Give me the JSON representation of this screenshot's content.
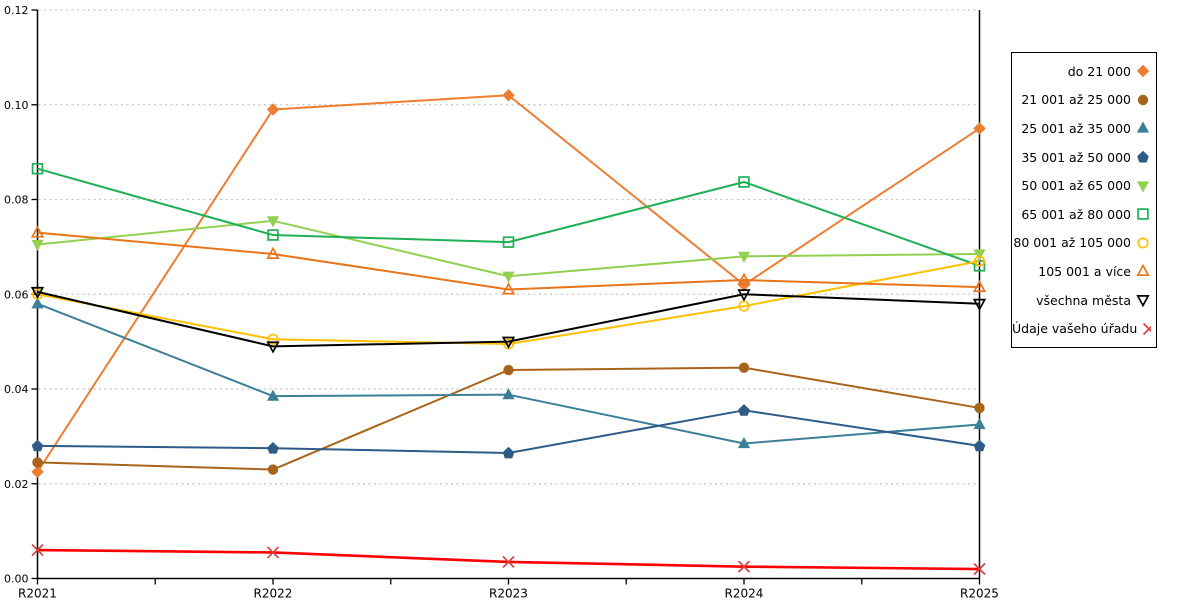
{
  "chart_data": {
    "type": "line",
    "title": "",
    "xlabel": "",
    "ylabel": "",
    "categories": [
      "R2021",
      "R2022",
      "R2023",
      "R2024",
      "R2025"
    ],
    "ylim": [
      0,
      0.12
    ],
    "ytick_step": 0.02,
    "ytick_labels": [
      "0.00",
      "0.02",
      "0.04",
      "0.06",
      "0.08",
      "0.10",
      "0.12"
    ],
    "grid": "horizontal-dotted",
    "legend_position": "right-outside",
    "series": [
      {
        "name": "do 21 000",
        "marker": "diamond",
        "filled": true,
        "color": "#ED7D31",
        "values": [
          0.0225,
          0.099,
          0.102,
          0.062,
          0.095
        ]
      },
      {
        "name": "21 001 až 25 000",
        "marker": "circle",
        "filled": true,
        "color": "#A9641C",
        "values": [
          0.0245,
          0.023,
          0.044,
          0.0445,
          0.036
        ]
      },
      {
        "name": "25 001 až 35 000",
        "marker": "triangle-up",
        "filled": true,
        "color": "#3C7F99",
        "values": [
          0.058,
          0.0385,
          0.0388,
          0.0285,
          0.0325
        ]
      },
      {
        "name": "35 001 až 50 000",
        "marker": "pentagon",
        "filled": true,
        "color": "#2E5B87",
        "values": [
          0.028,
          0.0275,
          0.0265,
          0.0355,
          0.028
        ]
      },
      {
        "name": "50 001 až 65 000",
        "marker": "triangle-down",
        "filled": true,
        "color": "#92D050",
        "values": [
          0.0705,
          0.0755,
          0.0638,
          0.068,
          0.0685
        ]
      },
      {
        "name": "65 001 až 80 000",
        "marker": "square",
        "filled": false,
        "color": "#1FAF54",
        "values": [
          0.0865,
          0.0725,
          0.071,
          0.0837,
          0.066
        ]
      },
      {
        "name": "80 001 až 105 000",
        "marker": "circle",
        "filled": false,
        "color": "#FFC000",
        "values": [
          0.06,
          0.0505,
          0.0495,
          0.0575,
          0.067
        ]
      },
      {
        "name": "105 001 a více",
        "marker": "triangle-up",
        "filled": false,
        "color": "#E8751A",
        "values": [
          0.073,
          0.0685,
          0.061,
          0.063,
          0.0615
        ]
      },
      {
        "name": "všechna města",
        "marker": "triangle-down",
        "filled": false,
        "color": "#000000",
        "values": [
          0.0605,
          0.049,
          0.05,
          0.06,
          0.058
        ]
      },
      {
        "name": "Údaje vašeho úřadu",
        "marker": "x",
        "filled": false,
        "color": "#FF0000",
        "marker_color": "#D94040",
        "line_width": 2.6,
        "values": [
          0.006,
          0.0055,
          0.0035,
          0.0025,
          0.002
        ]
      }
    ]
  }
}
